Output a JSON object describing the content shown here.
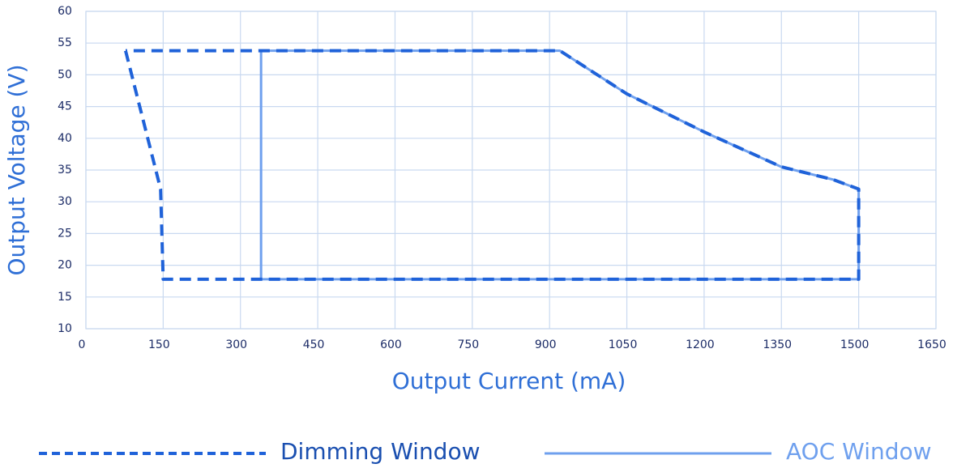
{
  "chart_data": {
    "type": "line",
    "xlabel": "Output Current (mA)",
    "ylabel": "Output  Voltage (V)",
    "xlim": [
      0,
      1650
    ],
    "xticks": [
      0,
      150,
      300,
      450,
      600,
      750,
      900,
      1050,
      1200,
      1350,
      1500,
      1650
    ],
    "ylim": [
      10,
      60
    ],
    "yticks": [
      10,
      15,
      20,
      25,
      30,
      35,
      40,
      45,
      50,
      55,
      60
    ],
    "grid": true,
    "series": [
      {
        "name": "Dimming Window",
        "color": "#1f62d9",
        "dashed": true,
        "x": [
          77,
          145,
          150,
          1500,
          1500,
          1450,
          1350,
          1200,
          1050,
          920,
          77
        ],
        "values": [
          53.8,
          32,
          17.8,
          17.8,
          32,
          33.5,
          35.5,
          41,
          47,
          53.8,
          53.8
        ]
      },
      {
        "name": "AOC Window",
        "color": "#6fa0ee",
        "dashed": false,
        "x": [
          340,
          340,
          920,
          1050,
          1200,
          1350,
          1450,
          1500,
          1500,
          340
        ],
        "values": [
          17.8,
          53.8,
          53.8,
          47,
          41,
          35.5,
          33.5,
          32,
          17.8,
          17.8
        ]
      }
    ]
  }
}
